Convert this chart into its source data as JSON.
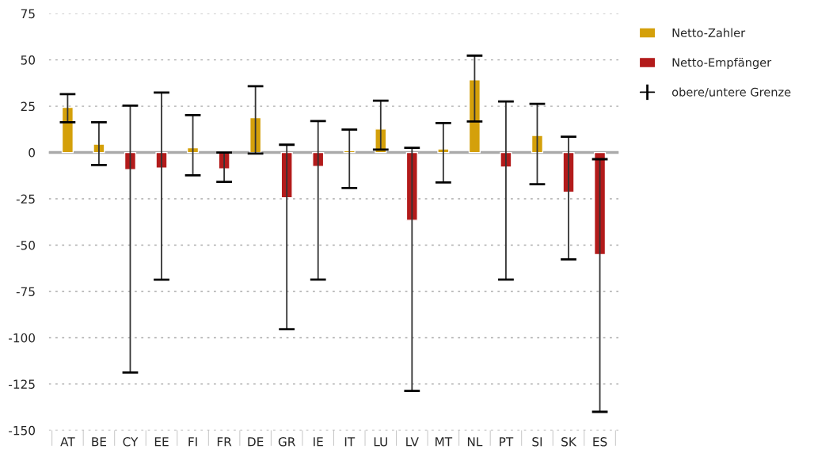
{
  "chart_data": {
    "type": "bar",
    "categories": [
      "AT",
      "BE",
      "CY",
      "EE",
      "FI",
      "FR",
      "DE",
      "GR",
      "IE",
      "IT",
      "LU",
      "LV",
      "MT",
      "NL",
      "PT",
      "SI",
      "SK",
      "ES"
    ],
    "series": [
      {
        "name": "Netto-Zahler",
        "color": "#d4a00a",
        "values": [
          24.4,
          4.5,
          null,
          null,
          2.6,
          null,
          18.8,
          null,
          null,
          1.0,
          12.7,
          null,
          1.9,
          39.2,
          null,
          9.2,
          null,
          null
        ],
        "errors": [
          [
            16.3,
            31.5
          ],
          [
            -6.8,
            16.3
          ],
          null,
          null,
          [
            -12.3,
            20.2
          ],
          null,
          [
            -0.6,
            35.8
          ],
          null,
          null,
          [
            -19.2,
            12.4
          ],
          [
            1.6,
            28
          ],
          null,
          [
            -16.2,
            15.9
          ],
          [
            16.8,
            52.3
          ],
          null,
          [
            -17.1,
            26.3
          ],
          null,
          null
        ]
      },
      {
        "name": "Netto-Empfänger",
        "color": "#b31b1b",
        "values": [
          null,
          null,
          -9.2,
          -8.4,
          null,
          -8.8,
          null,
          -24.4,
          -7.5,
          null,
          null,
          -36.6,
          null,
          null,
          -7.9,
          null,
          -21.4,
          -55.1
        ],
        "errors": [
          null,
          null,
          [
            -118.8,
            25.3
          ],
          [
            -68.6,
            32.4
          ],
          null,
          [
            -15.8,
            0
          ],
          null,
          [
            -95.4,
            4.2
          ],
          [
            -68.6,
            17
          ],
          null,
          null,
          [
            -128.7,
            2.5
          ],
          null,
          null,
          [
            -68.6,
            27.6
          ],
          null,
          [
            -57.7,
            8.5
          ],
          [
            -140,
            -3.6
          ]
        ]
      }
    ],
    "annotations": [
      "obere/untere Grenze"
    ],
    "ylim": [
      -150,
      75
    ],
    "yticks": [
      -150,
      -125,
      -100,
      -75,
      -50,
      -25,
      0,
      25,
      50,
      75
    ],
    "ref_lines": [
      {
        "axis": "y",
        "value": 0,
        "color": "#aaaaaa"
      }
    ],
    "grid": "y",
    "legend": "right"
  }
}
